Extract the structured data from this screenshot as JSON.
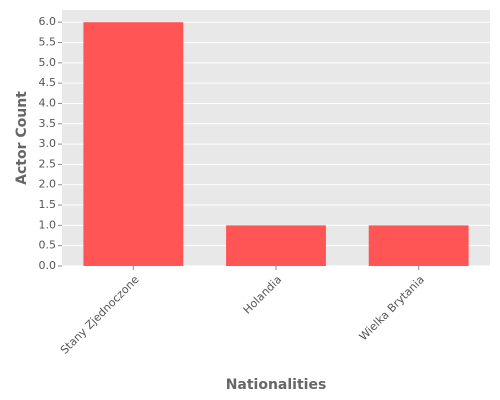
{
  "chart_data": {
    "type": "bar",
    "x_label": "Nationalities",
    "y_label": "Actor Count",
    "categories": [
      "Stany Zjednoczone",
      "Holandia",
      "Wielka Brytania"
    ],
    "values": [
      6,
      1,
      1
    ],
    "color": "#ff5555",
    "ylim": [
      0,
      6.3
    ],
    "yticks": [
      {
        "value": 0,
        "label": "0.0"
      },
      {
        "value": 0.5,
        "label": "0.5"
      },
      {
        "value": 1,
        "label": "1.0"
      },
      {
        "value": 1.5,
        "label": "1.5"
      },
      {
        "value": 2,
        "label": "2.0"
      },
      {
        "value": 2.5,
        "label": "2.5"
      },
      {
        "value": 3,
        "label": "3.0"
      },
      {
        "value": 3.5,
        "label": "3.5"
      },
      {
        "value": 4,
        "label": "4.0"
      },
      {
        "value": 4.5,
        "label": "4.5"
      },
      {
        "value": 5,
        "label": "5.0"
      },
      {
        "value": 5.5,
        "label": "5.5"
      },
      {
        "value": 6,
        "label": "6.0"
      }
    ],
    "grid": true
  }
}
